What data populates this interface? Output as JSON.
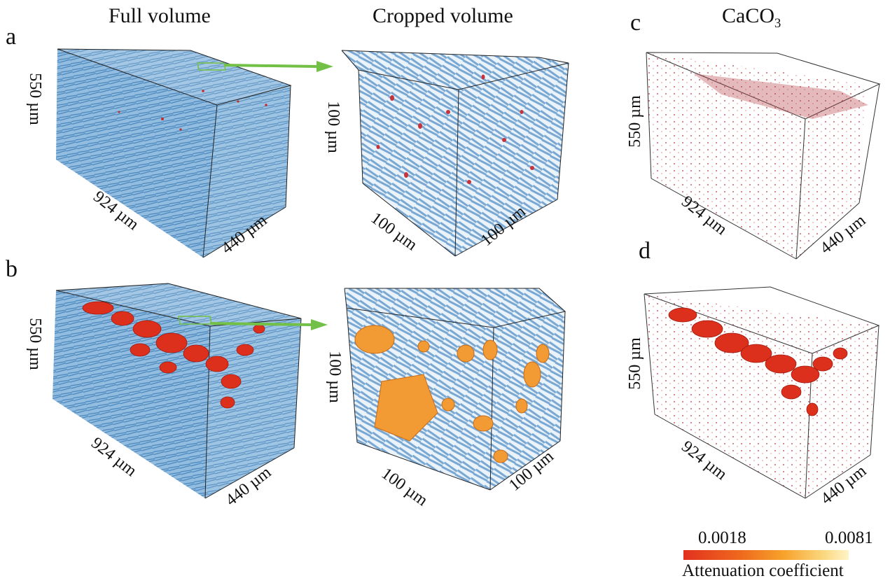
{
  "headers": {
    "full": "Full volume",
    "cropped": "Cropped volume",
    "caco3_prefix": "CaCO",
    "caco3_sub": "3"
  },
  "panel_labels": {
    "a": "a",
    "b": "b",
    "c": "c",
    "d": "d"
  },
  "dimensions": {
    "full_height": "550 µm",
    "full_length": "924 µm",
    "full_depth": "440 µm",
    "crop_side": "100 µm"
  },
  "colorbar": {
    "min": "0.0018",
    "max": "0.0081",
    "title": "Attenuation coefficient"
  },
  "colors": {
    "fiber_blue": "#4d8fc4",
    "particle_red": "#d8281b",
    "particle_orange": "#f09a2c",
    "arrow_green": "#72c046"
  }
}
